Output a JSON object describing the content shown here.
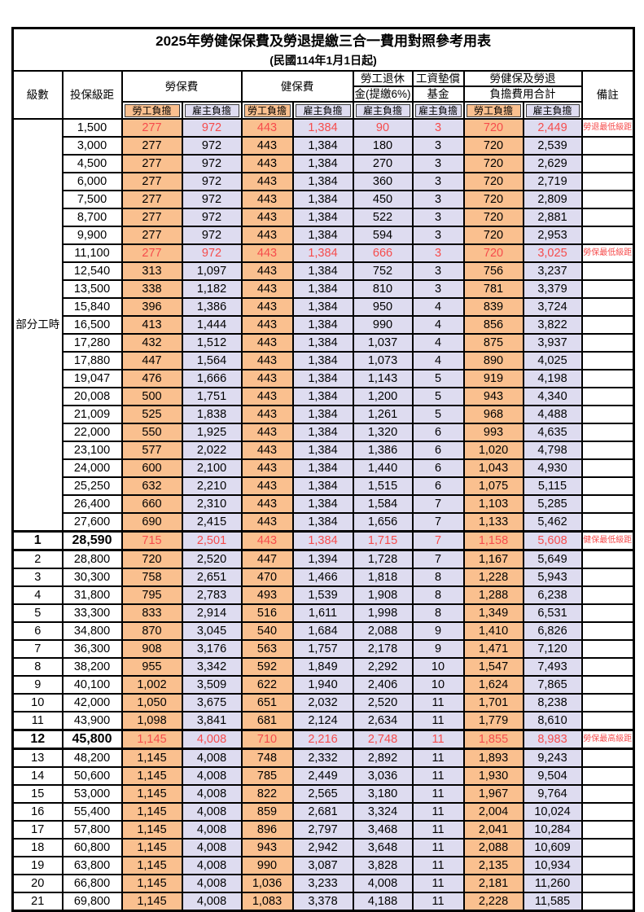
{
  "header": {
    "title": "2025年勞健保保費及勞退提繳三合一費用對照參考用表",
    "subtitle": "(民國114年1月1日起)"
  },
  "columns": {
    "level": "級數",
    "bracket": "投保級距",
    "labor_insurance": "勞保費",
    "health_insurance": "健保費",
    "pension_line1": "勞工退休",
    "pension_line2": "金(提繳6%)",
    "wage_fund_line1": "工資墊償",
    "wage_fund_line2": "基金",
    "total_line1": "勞健保及勞退",
    "total_line2": "負擔費用合計",
    "remark": "備註",
    "employee": "勞工負擔",
    "employer": "雇主負擔"
  },
  "part_time_label": "部分工時",
  "colors": {
    "employee_fill": "#fac08f",
    "employer_fill": "#dedcf0",
    "highlight_text": "#f64c4c",
    "border": "#000000"
  },
  "rows": [
    {
      "level": "",
      "bracket": "1,500",
      "values": [
        "277",
        "972",
        "443",
        "1,384",
        "90",
        "3",
        "720",
        "2,449"
      ],
      "remark": "勞退最低級距",
      "highlight": true,
      "strong": false
    },
    {
      "level": "",
      "bracket": "3,000",
      "values": [
        "277",
        "972",
        "443",
        "1,384",
        "180",
        "3",
        "720",
        "2,539"
      ],
      "remark": "",
      "highlight": false,
      "strong": false
    },
    {
      "level": "",
      "bracket": "4,500",
      "values": [
        "277",
        "972",
        "443",
        "1,384",
        "270",
        "3",
        "720",
        "2,629"
      ],
      "remark": "",
      "highlight": false,
      "strong": false
    },
    {
      "level": "",
      "bracket": "6,000",
      "values": [
        "277",
        "972",
        "443",
        "1,384",
        "360",
        "3",
        "720",
        "2,719"
      ],
      "remark": "",
      "highlight": false,
      "strong": false
    },
    {
      "level": "",
      "bracket": "7,500",
      "values": [
        "277",
        "972",
        "443",
        "1,384",
        "450",
        "3",
        "720",
        "2,809"
      ],
      "remark": "",
      "highlight": false,
      "strong": false
    },
    {
      "level": "",
      "bracket": "8,700",
      "values": [
        "277",
        "972",
        "443",
        "1,384",
        "522",
        "3",
        "720",
        "2,881"
      ],
      "remark": "",
      "highlight": false,
      "strong": false
    },
    {
      "level": "",
      "bracket": "9,900",
      "values": [
        "277",
        "972",
        "443",
        "1,384",
        "594",
        "3",
        "720",
        "2,953"
      ],
      "remark": "",
      "highlight": false,
      "strong": false
    },
    {
      "level": "",
      "bracket": "11,100",
      "values": [
        "277",
        "972",
        "443",
        "1,384",
        "666",
        "3",
        "720",
        "3,025"
      ],
      "remark": "勞保最低級距",
      "highlight": true,
      "strong": false
    },
    {
      "level": "",
      "bracket": "12,540",
      "values": [
        "313",
        "1,097",
        "443",
        "1,384",
        "752",
        "3",
        "756",
        "3,237"
      ],
      "remark": "",
      "highlight": false,
      "strong": false
    },
    {
      "level": "",
      "bracket": "13,500",
      "values": [
        "338",
        "1,182",
        "443",
        "1,384",
        "810",
        "3",
        "781",
        "3,379"
      ],
      "remark": "",
      "highlight": false,
      "strong": false
    },
    {
      "level": "",
      "bracket": "15,840",
      "values": [
        "396",
        "1,386",
        "443",
        "1,384",
        "950",
        "4",
        "839",
        "3,724"
      ],
      "remark": "",
      "highlight": false,
      "strong": false
    },
    {
      "level": "",
      "bracket": "16,500",
      "values": [
        "413",
        "1,444",
        "443",
        "1,384",
        "990",
        "4",
        "856",
        "3,822"
      ],
      "remark": "",
      "highlight": false,
      "strong": false
    },
    {
      "level": "",
      "bracket": "17,280",
      "values": [
        "432",
        "1,512",
        "443",
        "1,384",
        "1,037",
        "4",
        "875",
        "3,937"
      ],
      "remark": "",
      "highlight": false,
      "strong": false
    },
    {
      "level": "",
      "bracket": "17,880",
      "values": [
        "447",
        "1,564",
        "443",
        "1,384",
        "1,073",
        "4",
        "890",
        "4,025"
      ],
      "remark": "",
      "highlight": false,
      "strong": false
    },
    {
      "level": "",
      "bracket": "19,047",
      "values": [
        "476",
        "1,666",
        "443",
        "1,384",
        "1,143",
        "5",
        "919",
        "4,198"
      ],
      "remark": "",
      "highlight": false,
      "strong": false
    },
    {
      "level": "",
      "bracket": "20,008",
      "values": [
        "500",
        "1,751",
        "443",
        "1,384",
        "1,200",
        "5",
        "943",
        "4,340"
      ],
      "remark": "",
      "highlight": false,
      "strong": false
    },
    {
      "level": "",
      "bracket": "21,009",
      "values": [
        "525",
        "1,838",
        "443",
        "1,384",
        "1,261",
        "5",
        "968",
        "4,488"
      ],
      "remark": "",
      "highlight": false,
      "strong": false
    },
    {
      "level": "",
      "bracket": "22,000",
      "values": [
        "550",
        "1,925",
        "443",
        "1,384",
        "1,320",
        "6",
        "993",
        "4,635"
      ],
      "remark": "",
      "highlight": false,
      "strong": false
    },
    {
      "level": "",
      "bracket": "23,100",
      "values": [
        "577",
        "2,022",
        "443",
        "1,384",
        "1,386",
        "6",
        "1,020",
        "4,798"
      ],
      "remark": "",
      "highlight": false,
      "strong": false
    },
    {
      "level": "",
      "bracket": "24,000",
      "values": [
        "600",
        "2,100",
        "443",
        "1,384",
        "1,440",
        "6",
        "1,043",
        "4,930"
      ],
      "remark": "",
      "highlight": false,
      "strong": false
    },
    {
      "level": "",
      "bracket": "25,250",
      "values": [
        "632",
        "2,210",
        "443",
        "1,384",
        "1,515",
        "6",
        "1,075",
        "5,115"
      ],
      "remark": "",
      "highlight": false,
      "strong": false
    },
    {
      "level": "",
      "bracket": "26,400",
      "values": [
        "660",
        "2,310",
        "443",
        "1,384",
        "1,584",
        "7",
        "1,103",
        "5,285"
      ],
      "remark": "",
      "highlight": false,
      "strong": false
    },
    {
      "level": "",
      "bracket": "27,600",
      "values": [
        "690",
        "2,415",
        "443",
        "1,384",
        "1,656",
        "7",
        "1,133",
        "5,462"
      ],
      "remark": "",
      "highlight": false,
      "strong": false
    },
    {
      "level": "1",
      "bracket": "28,590",
      "values": [
        "715",
        "2,501",
        "443",
        "1,384",
        "1,715",
        "7",
        "1,158",
        "5,608"
      ],
      "remark": "健保最低級距",
      "highlight": true,
      "strong": true
    },
    {
      "level": "2",
      "bracket": "28,800",
      "values": [
        "720",
        "2,520",
        "447",
        "1,394",
        "1,728",
        "7",
        "1,167",
        "5,649"
      ],
      "remark": "",
      "highlight": false,
      "strong": false
    },
    {
      "level": "3",
      "bracket": "30,300",
      "values": [
        "758",
        "2,651",
        "470",
        "1,466",
        "1,818",
        "8",
        "1,228",
        "5,943"
      ],
      "remark": "",
      "highlight": false,
      "strong": false
    },
    {
      "level": "4",
      "bracket": "31,800",
      "values": [
        "795",
        "2,783",
        "493",
        "1,539",
        "1,908",
        "8",
        "1,288",
        "6,238"
      ],
      "remark": "",
      "highlight": false,
      "strong": false
    },
    {
      "level": "5",
      "bracket": "33,300",
      "values": [
        "833",
        "2,914",
        "516",
        "1,611",
        "1,998",
        "8",
        "1,349",
        "6,531"
      ],
      "remark": "",
      "highlight": false,
      "strong": false
    },
    {
      "level": "6",
      "bracket": "34,800",
      "values": [
        "870",
        "3,045",
        "540",
        "1,684",
        "2,088",
        "9",
        "1,410",
        "6,826"
      ],
      "remark": "",
      "highlight": false,
      "strong": false
    },
    {
      "level": "7",
      "bracket": "36,300",
      "values": [
        "908",
        "3,176",
        "563",
        "1,757",
        "2,178",
        "9",
        "1,471",
        "7,120"
      ],
      "remark": "",
      "highlight": false,
      "strong": false
    },
    {
      "level": "8",
      "bracket": "38,200",
      "values": [
        "955",
        "3,342",
        "592",
        "1,849",
        "2,292",
        "10",
        "1,547",
        "7,493"
      ],
      "remark": "",
      "highlight": false,
      "strong": false
    },
    {
      "level": "9",
      "bracket": "40,100",
      "values": [
        "1,002",
        "3,509",
        "622",
        "1,940",
        "2,406",
        "10",
        "1,624",
        "7,865"
      ],
      "remark": "",
      "highlight": false,
      "strong": false
    },
    {
      "level": "10",
      "bracket": "42,000",
      "values": [
        "1,050",
        "3,675",
        "651",
        "2,032",
        "2,520",
        "11",
        "1,701",
        "8,238"
      ],
      "remark": "",
      "highlight": false,
      "strong": false
    },
    {
      "level": "11",
      "bracket": "43,900",
      "values": [
        "1,098",
        "3,841",
        "681",
        "2,124",
        "2,634",
        "11",
        "1,779",
        "8,610"
      ],
      "remark": "",
      "highlight": false,
      "strong": false
    },
    {
      "level": "12",
      "bracket": "45,800",
      "values": [
        "1,145",
        "4,008",
        "710",
        "2,216",
        "2,748",
        "11",
        "1,855",
        "8,983"
      ],
      "remark": "勞保最高級距",
      "highlight": true,
      "strong": true
    },
    {
      "level": "13",
      "bracket": "48,200",
      "values": [
        "1,145",
        "4,008",
        "748",
        "2,332",
        "2,892",
        "11",
        "1,893",
        "9,243"
      ],
      "remark": "",
      "highlight": false,
      "strong": false
    },
    {
      "level": "14",
      "bracket": "50,600",
      "values": [
        "1,145",
        "4,008",
        "785",
        "2,449",
        "3,036",
        "11",
        "1,930",
        "9,504"
      ],
      "remark": "",
      "highlight": false,
      "strong": false
    },
    {
      "level": "15",
      "bracket": "53,000",
      "values": [
        "1,145",
        "4,008",
        "822",
        "2,565",
        "3,180",
        "11",
        "1,967",
        "9,764"
      ],
      "remark": "",
      "highlight": false,
      "strong": false
    },
    {
      "level": "16",
      "bracket": "55,400",
      "values": [
        "1,145",
        "4,008",
        "859",
        "2,681",
        "3,324",
        "11",
        "2,004",
        "10,024"
      ],
      "remark": "",
      "highlight": false,
      "strong": false
    },
    {
      "level": "17",
      "bracket": "57,800",
      "values": [
        "1,145",
        "4,008",
        "896",
        "2,797",
        "3,468",
        "11",
        "2,041",
        "10,284"
      ],
      "remark": "",
      "highlight": false,
      "strong": false
    },
    {
      "level": "18",
      "bracket": "60,800",
      "values": [
        "1,145",
        "4,008",
        "943",
        "2,942",
        "3,648",
        "11",
        "2,088",
        "10,609"
      ],
      "remark": "",
      "highlight": false,
      "strong": false
    },
    {
      "level": "19",
      "bracket": "63,800",
      "values": [
        "1,145",
        "4,008",
        "990",
        "3,087",
        "3,828",
        "11",
        "2,135",
        "10,934"
      ],
      "remark": "",
      "highlight": false,
      "strong": false
    },
    {
      "level": "20",
      "bracket": "66,800",
      "values": [
        "1,145",
        "4,008",
        "1,036",
        "3,233",
        "4,008",
        "11",
        "2,181",
        "11,260"
      ],
      "remark": "",
      "highlight": false,
      "strong": false
    },
    {
      "level": "21",
      "bracket": "69,800",
      "values": [
        "1,145",
        "4,008",
        "1,083",
        "3,378",
        "4,188",
        "11",
        "2,228",
        "11,585"
      ],
      "remark": "",
      "highlight": false,
      "strong": false
    }
  ]
}
